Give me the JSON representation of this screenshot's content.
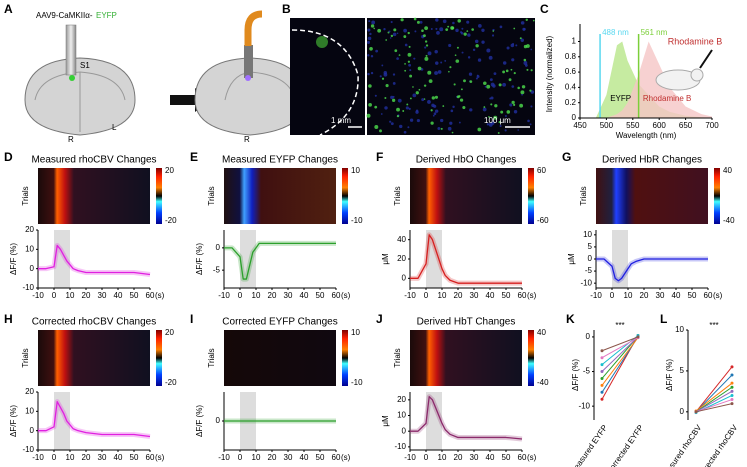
{
  "panel_a": {
    "letter": "A",
    "virus_label": "AAV9-CaMKIIα-",
    "virus_reporter": "EYFP",
    "region": "S1",
    "hemisphere_labels": [
      "R",
      "L",
      "R",
      "L"
    ]
  },
  "panel_b": {
    "letter": "B",
    "scale_left": "1 mm",
    "scale_right": "100 μm"
  },
  "chart_data": [
    {
      "type": "area",
      "letter": "C",
      "x_label": "Wavelength (nm)",
      "y_label": "Intensity (normalized)",
      "xlim": [
        450,
        700
      ],
      "ylim": [
        0,
        1.15
      ],
      "xticks": [
        450,
        500,
        550,
        600,
        650,
        700
      ],
      "yticks": [
        0,
        0.2,
        0.4,
        0.6,
        0.8,
        1
      ],
      "x": [
        480,
        500,
        520,
        530,
        540,
        560,
        580,
        600,
        620,
        650,
        680,
        700
      ],
      "series": [
        {
          "name": "EYFP",
          "color": "#b8e68a",
          "values": [
            0,
            0.3,
            0.95,
            1,
            0.75,
            0.45,
            0.3,
            0.15,
            0.08,
            0.03,
            0.01,
            0
          ]
        },
        {
          "name": "Rhodamine B",
          "color": "#f5c6c6",
          "values": [
            0,
            0,
            0.05,
            0.1,
            0.2,
            0.55,
            1,
            0.7,
            0.4,
            0.15,
            0.05,
            0.02
          ]
        }
      ],
      "lines": [
        {
          "label": "488 nm",
          "value": 488,
          "color": "#5ad8f0"
        },
        {
          "label": "561 nm",
          "value": 561,
          "color": "#7ccf3a"
        }
      ],
      "animal_label": "Rhodamine B"
    },
    {
      "type": "heatmap_trace",
      "letter": "D",
      "title": "Measured rhoCBV Changes",
      "heatmap_label": "Trials",
      "clim": [
        -20,
        20
      ],
      "y_label": "ΔF/F (%)",
      "ylim": [
        -10,
        20
      ],
      "yticks": [
        20,
        10,
        0,
        -10
      ],
      "xlim": [
        -10,
        60
      ],
      "xticks": [
        -10,
        0,
        10,
        20,
        30,
        40,
        50,
        60
      ],
      "x_label": "(s)",
      "shaded": [
        0,
        10
      ],
      "x": [
        -10,
        -5,
        0,
        2,
        4,
        6,
        8,
        10,
        12,
        15,
        20,
        30,
        40,
        50,
        60
      ],
      "color": "#e020e0",
      "values": [
        0,
        0,
        1,
        12,
        10,
        7,
        4,
        2,
        0,
        -1,
        -2,
        -2,
        -2,
        -2,
        -3
      ]
    },
    {
      "type": "heatmap_trace",
      "letter": "E",
      "title": "Measured EYFP Changes",
      "heatmap_label": "Trials",
      "clim": [
        -10,
        10
      ],
      "y_label": "ΔF/F (%)",
      "ylim": [
        -9,
        4
      ],
      "yticks": [
        0,
        -5
      ],
      "xlim": [
        -10,
        60
      ],
      "xticks": [
        -10,
        0,
        10,
        20,
        30,
        40,
        50,
        60
      ],
      "x_label": "(s)",
      "shaded": [
        0,
        10
      ],
      "x": [
        -10,
        -5,
        0,
        2,
        4,
        6,
        8,
        10,
        12,
        15,
        20,
        30,
        40,
        50,
        60
      ],
      "color": "#2ca02c",
      "values": [
        0,
        0,
        -2,
        -7,
        -7,
        -4,
        -1,
        0,
        1,
        1,
        1,
        1,
        1,
        1,
        1
      ]
    },
    {
      "type": "heatmap_trace",
      "letter": "F",
      "title": "Derived HbO Changes",
      "heatmap_label": "Trials",
      "clim": [
        -60,
        60
      ],
      "y_label": "μM",
      "ylim": [
        -10,
        50
      ],
      "yticks": [
        40,
        20,
        0
      ],
      "xlim": [
        -10,
        60
      ],
      "xticks": [
        -10,
        0,
        10,
        20,
        30,
        40,
        50,
        60
      ],
      "x_label": "(s)",
      "shaded": [
        0,
        10
      ],
      "x": [
        -10,
        -5,
        0,
        2,
        4,
        6,
        8,
        10,
        12,
        15,
        20,
        30,
        40,
        50,
        60
      ],
      "color": "#d62020",
      "values": [
        0,
        0,
        15,
        45,
        40,
        30,
        20,
        10,
        3,
        -2,
        -5,
        -5,
        -5,
        -5,
        -5
      ]
    },
    {
      "type": "heatmap_trace",
      "letter": "G",
      "title": "Derived HbR Changes",
      "heatmap_label": "Trials",
      "clim": [
        -40,
        40
      ],
      "y_label": "μM",
      "ylim": [
        -12,
        12
      ],
      "yticks": [
        10,
        5,
        0,
        -5,
        -10
      ],
      "xlim": [
        -10,
        60
      ],
      "xticks": [
        -10,
        0,
        10,
        20,
        30,
        40,
        50,
        60
      ],
      "x_label": "(s)",
      "shaded": [
        0,
        10
      ],
      "x": [
        -10,
        -5,
        0,
        2,
        4,
        6,
        8,
        10,
        12,
        15,
        20,
        30,
        40,
        50,
        60
      ],
      "color": "#2020e0",
      "values": [
        0,
        0,
        -3,
        -8,
        -9,
        -8,
        -6,
        -4,
        -2,
        -1,
        0,
        0,
        0,
        0,
        0
      ]
    },
    {
      "type": "heatmap_trace",
      "letter": "H",
      "title": "Corrected rhoCBV Changes",
      "heatmap_label": "Trials",
      "clim": [
        -20,
        20
      ],
      "y_label": "ΔF/F (%)",
      "ylim": [
        -10,
        20
      ],
      "yticks": [
        20,
        10,
        0,
        -10
      ],
      "xlim": [
        -10,
        60
      ],
      "xticks": [
        -10,
        0,
        10,
        20,
        30,
        40,
        50,
        60
      ],
      "x_label": "(s)",
      "shaded": [
        0,
        10
      ],
      "x": [
        -10,
        -5,
        0,
        2,
        4,
        6,
        8,
        10,
        12,
        15,
        20,
        30,
        40,
        50,
        60
      ],
      "color": "#e020e0",
      "values": [
        0,
        0,
        2,
        15,
        12,
        9,
        5,
        3,
        1,
        0,
        -1,
        -2,
        -2,
        -2,
        -3
      ]
    },
    {
      "type": "heatmap_trace",
      "letter": "I",
      "title": "Corrected EYFP Changes",
      "heatmap_label": "Trials",
      "clim": [
        -10,
        10
      ],
      "y_label": "ΔF/F (%)",
      "ylim": [
        -5,
        5
      ],
      "yticks": [
        0
      ],
      "xlim": [
        -10,
        60
      ],
      "xticks": [
        -10,
        0,
        10,
        20,
        30,
        40,
        50,
        60
      ],
      "x_label": "(s)",
      "shaded": [
        0,
        10
      ],
      "x": [
        -10,
        -5,
        0,
        2,
        4,
        6,
        8,
        10,
        12,
        15,
        20,
        30,
        40,
        50,
        60
      ],
      "color": "#2ca02c",
      "values": [
        0,
        0,
        0,
        0,
        0,
        0,
        0,
        0,
        0,
        0,
        0,
        0,
        0,
        0,
        0
      ]
    },
    {
      "type": "heatmap_trace",
      "letter": "J",
      "title": "Derived HbT Changes",
      "heatmap_label": "Trials",
      "clim": [
        -40,
        40
      ],
      "y_label": "μM",
      "ylim": [
        -12,
        25
      ],
      "yticks": [
        20,
        10,
        0,
        -10
      ],
      "xlim": [
        -10,
        60
      ],
      "xticks": [
        -10,
        0,
        10,
        20,
        30,
        40,
        50,
        60
      ],
      "x_label": "(s)",
      "shaded": [
        0,
        10
      ],
      "x": [
        -10,
        -5,
        0,
        2,
        4,
        6,
        8,
        10,
        12,
        15,
        20,
        30,
        40,
        50,
        60
      ],
      "color": "#8b2a6b",
      "values": [
        0,
        0,
        5,
        22,
        20,
        15,
        10,
        5,
        1,
        -2,
        -4,
        -4,
        -4,
        -4,
        -5
      ]
    },
    {
      "type": "paired",
      "letter": "K",
      "y_label": "ΔF/F (%)",
      "ylim": [
        -12,
        1
      ],
      "yticks": [
        0,
        -5,
        -10
      ],
      "categories": [
        "Measured EYFP",
        "Corrected EYFP"
      ],
      "significance": "***",
      "pairs": [
        [
          -9,
          0.2
        ],
        [
          -8,
          0
        ],
        [
          -7,
          -0.1
        ],
        [
          -6,
          0.1
        ],
        [
          -5,
          0
        ],
        [
          -4,
          0.2
        ],
        [
          -3,
          -0.1
        ],
        [
          -2,
          0
        ]
      ],
      "colors": [
        "#d62728",
        "#1f77b4",
        "#ff7f0e",
        "#2ca02c",
        "#9467bd",
        "#17becf",
        "#e377c2",
        "#8c564b"
      ]
    },
    {
      "type": "paired",
      "letter": "L",
      "y_label": "ΔF/F (%)",
      "ylim": [
        -1,
        10
      ],
      "yticks": [
        0,
        5,
        10
      ],
      "categories": [
        "Measured rhoCBV",
        "Corrected rhoCBV"
      ],
      "significance": "***",
      "pairs": [
        [
          0,
          5.5
        ],
        [
          0,
          4.5
        ],
        [
          0.1,
          3.5
        ],
        [
          0,
          3
        ],
        [
          0,
          2.5
        ],
        [
          -0.1,
          2
        ],
        [
          0,
          1.5
        ],
        [
          0,
          1
        ]
      ],
      "colors": [
        "#d62728",
        "#1f77b4",
        "#ff7f0e",
        "#2ca02c",
        "#9467bd",
        "#17becf",
        "#e377c2",
        "#8c564b"
      ]
    }
  ]
}
